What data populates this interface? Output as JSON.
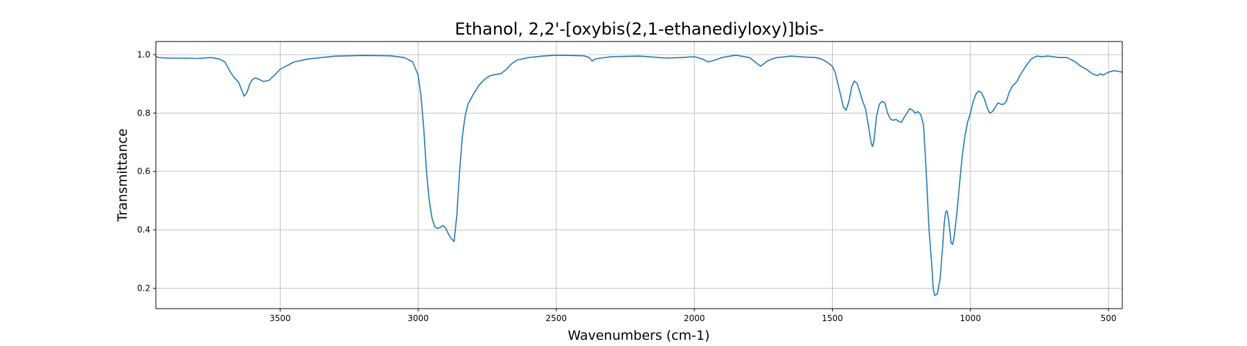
{
  "chart_data": {
    "type": "line",
    "title": "Ethanol, 2,2'-[oxybis(2,1-ethanediyloxy)]bis-",
    "xlabel": "Wavenumbers (cm-1)",
    "ylabel": "Transmittance",
    "xlim": [
      3950,
      450
    ],
    "ylim": [
      0.13,
      1.045
    ],
    "x_reversed": true,
    "grid": true,
    "xticks": [
      3500,
      3000,
      2500,
      2000,
      1500,
      1000,
      500
    ],
    "yticks": [
      0.2,
      0.4,
      0.6,
      0.8,
      1.0
    ],
    "xtick_labels": [
      "3500",
      "3000",
      "2500",
      "2000",
      "1500",
      "1000",
      "500"
    ],
    "ytick_labels": [
      "0.2",
      "0.4",
      "0.6",
      "0.8",
      "1.0"
    ],
    "series": [
      {
        "color": "#1f77b4",
        "points": [
          [
            3950,
            0.995
          ],
          [
            3940,
            0.99
          ],
          [
            3900,
            0.988
          ],
          [
            3850,
            0.988
          ],
          [
            3800,
            0.987
          ],
          [
            3750,
            0.99
          ],
          [
            3720,
            0.985
          ],
          [
            3700,
            0.975
          ],
          [
            3680,
            0.94
          ],
          [
            3665,
            0.92
          ],
          [
            3650,
            0.905
          ],
          [
            3640,
            0.88
          ],
          [
            3630,
            0.858
          ],
          [
            3620,
            0.87
          ],
          [
            3610,
            0.9
          ],
          [
            3600,
            0.915
          ],
          [
            3590,
            0.92
          ],
          [
            3575,
            0.915
          ],
          [
            3560,
            0.908
          ],
          [
            3540,
            0.912
          ],
          [
            3520,
            0.93
          ],
          [
            3500,
            0.95
          ],
          [
            3450,
            0.975
          ],
          [
            3400,
            0.985
          ],
          [
            3300,
            0.995
          ],
          [
            3200,
            0.997
          ],
          [
            3100,
            0.996
          ],
          [
            3050,
            0.99
          ],
          [
            3020,
            0.975
          ],
          [
            3000,
            0.93
          ],
          [
            2990,
            0.86
          ],
          [
            2980,
            0.75
          ],
          [
            2970,
            0.6
          ],
          [
            2960,
            0.5
          ],
          [
            2950,
            0.44
          ],
          [
            2940,
            0.41
          ],
          [
            2930,
            0.405
          ],
          [
            2920,
            0.408
          ],
          [
            2910,
            0.415
          ],
          [
            2900,
            0.405
          ],
          [
            2890,
            0.385
          ],
          [
            2880,
            0.37
          ],
          [
            2870,
            0.36
          ],
          [
            2860,
            0.45
          ],
          [
            2850,
            0.6
          ],
          [
            2840,
            0.72
          ],
          [
            2830,
            0.79
          ],
          [
            2820,
            0.83
          ],
          [
            2800,
            0.865
          ],
          [
            2780,
            0.895
          ],
          [
            2760,
            0.915
          ],
          [
            2740,
            0.928
          ],
          [
            2720,
            0.932
          ],
          [
            2700,
            0.935
          ],
          [
            2680,
            0.95
          ],
          [
            2660,
            0.97
          ],
          [
            2640,
            0.982
          ],
          [
            2600,
            0.99
          ],
          [
            2550,
            0.995
          ],
          [
            2500,
            0.998
          ],
          [
            2450,
            0.997
          ],
          [
            2400,
            0.996
          ],
          [
            2380,
            0.99
          ],
          [
            2370,
            0.978
          ],
          [
            2360,
            0.985
          ],
          [
            2340,
            0.988
          ],
          [
            2300,
            0.993
          ],
          [
            2200,
            0.995
          ],
          [
            2150,
            0.992
          ],
          [
            2100,
            0.988
          ],
          [
            2050,
            0.99
          ],
          [
            2000,
            0.993
          ],
          [
            1970,
            0.985
          ],
          [
            1950,
            0.975
          ],
          [
            1930,
            0.98
          ],
          [
            1900,
            0.99
          ],
          [
            1870,
            0.995
          ],
          [
            1850,
            0.998
          ],
          [
            1800,
            0.99
          ],
          [
            1780,
            0.975
          ],
          [
            1760,
            0.96
          ],
          [
            1740,
            0.975
          ],
          [
            1720,
            0.985
          ],
          [
            1700,
            0.99
          ],
          [
            1680,
            0.992
          ],
          [
            1650,
            0.995
          ],
          [
            1600,
            0.992
          ],
          [
            1560,
            0.99
          ],
          [
            1540,
            0.985
          ],
          [
            1520,
            0.975
          ],
          [
            1500,
            0.96
          ],
          [
            1490,
            0.94
          ],
          [
            1480,
            0.9
          ],
          [
            1470,
            0.86
          ],
          [
            1460,
            0.82
          ],
          [
            1450,
            0.81
          ],
          [
            1440,
            0.84
          ],
          [
            1430,
            0.89
          ],
          [
            1420,
            0.91
          ],
          [
            1410,
            0.9
          ],
          [
            1400,
            0.87
          ],
          [
            1390,
            0.84
          ],
          [
            1380,
            0.815
          ],
          [
            1370,
            0.76
          ],
          [
            1360,
            0.7
          ],
          [
            1355,
            0.685
          ],
          [
            1350,
            0.7
          ],
          [
            1340,
            0.79
          ],
          [
            1330,
            0.83
          ],
          [
            1320,
            0.84
          ],
          [
            1310,
            0.835
          ],
          [
            1300,
            0.8
          ],
          [
            1290,
            0.78
          ],
          [
            1280,
            0.775
          ],
          [
            1270,
            0.778
          ],
          [
            1260,
            0.772
          ],
          [
            1250,
            0.768
          ],
          [
            1240,
            0.785
          ],
          [
            1230,
            0.8
          ],
          [
            1220,
            0.815
          ],
          [
            1210,
            0.81
          ],
          [
            1200,
            0.8
          ],
          [
            1190,
            0.805
          ],
          [
            1180,
            0.795
          ],
          [
            1170,
            0.76
          ],
          [
            1160,
            0.6
          ],
          [
            1150,
            0.4
          ],
          [
            1140,
            0.28
          ],
          [
            1135,
            0.2
          ],
          [
            1130,
            0.175
          ],
          [
            1120,
            0.18
          ],
          [
            1110,
            0.23
          ],
          [
            1100,
            0.35
          ],
          [
            1095,
            0.42
          ],
          [
            1090,
            0.46
          ],
          [
            1085,
            0.465
          ],
          [
            1080,
            0.44
          ],
          [
            1075,
            0.4
          ],
          [
            1070,
            0.355
          ],
          [
            1065,
            0.35
          ],
          [
            1060,
            0.37
          ],
          [
            1050,
            0.45
          ],
          [
            1040,
            0.55
          ],
          [
            1030,
            0.65
          ],
          [
            1020,
            0.72
          ],
          [
            1010,
            0.77
          ],
          [
            1000,
            0.8
          ],
          [
            990,
            0.84
          ],
          [
            980,
            0.865
          ],
          [
            970,
            0.875
          ],
          [
            960,
            0.87
          ],
          [
            950,
            0.85
          ],
          [
            940,
            0.82
          ],
          [
            930,
            0.8
          ],
          [
            920,
            0.805
          ],
          [
            910,
            0.82
          ],
          [
            900,
            0.835
          ],
          [
            890,
            0.83
          ],
          [
            880,
            0.83
          ],
          [
            870,
            0.84
          ],
          [
            860,
            0.87
          ],
          [
            850,
            0.89
          ],
          [
            840,
            0.9
          ],
          [
            830,
            0.91
          ],
          [
            820,
            0.93
          ],
          [
            800,
            0.96
          ],
          [
            780,
            0.985
          ],
          [
            760,
            0.995
          ],
          [
            740,
            0.993
          ],
          [
            720,
            0.995
          ],
          [
            700,
            0.993
          ],
          [
            680,
            0.99
          ],
          [
            650,
            0.99
          ],
          [
            620,
            0.975
          ],
          [
            600,
            0.96
          ],
          [
            580,
            0.95
          ],
          [
            560,
            0.935
          ],
          [
            540,
            0.928
          ],
          [
            530,
            0.935
          ],
          [
            520,
            0.93
          ],
          [
            510,
            0.935
          ],
          [
            500,
            0.94
          ],
          [
            480,
            0.945
          ],
          [
            460,
            0.942
          ],
          [
            450,
            0.94
          ]
        ]
      }
    ]
  }
}
